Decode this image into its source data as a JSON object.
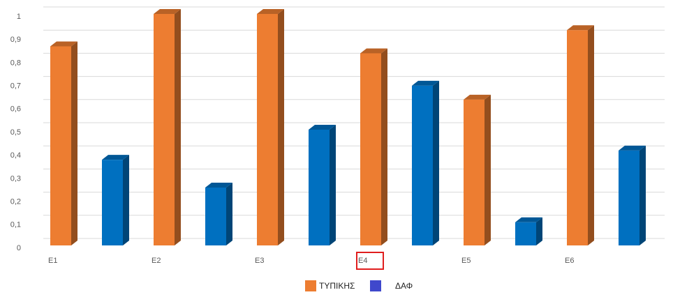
{
  "chart_data": {
    "type": "bar3d",
    "categories": [
      "E1",
      "E2",
      "E3",
      "E4",
      "E5",
      "E6"
    ],
    "highlighted_category": "E4",
    "series": [
      {
        "name": "ΤΥΠΙΚΗΣ",
        "color": "#ed7d31",
        "values": [
          0.86,
          1.0,
          1.0,
          0.83,
          0.63,
          0.93
        ]
      },
      {
        "name": "ΔΑΦ",
        "color": "#0070c0",
        "values": [
          0.37,
          0.25,
          0.5,
          0.69,
          0.1,
          0.41
        ]
      }
    ],
    "ylim": [
      0,
      1
    ],
    "yticks": [
      0,
      {
        "value": 0.1,
        "label": "0,1"
      },
      {
        "value": 0.2,
        "label": "0,2"
      },
      {
        "value": 0.3,
        "label": "0,3"
      },
      {
        "value": 0.4,
        "label": "0,4"
      },
      {
        "value": 0.5,
        "label": "0,5"
      },
      {
        "value": 0.6,
        "label": "0,6"
      },
      {
        "value": 0.7,
        "label": "0,7"
      },
      {
        "value": 0.8,
        "label": "0,8"
      },
      {
        "value": 0.9,
        "label": "0,9"
      },
      1
    ],
    "grid": true
  }
}
